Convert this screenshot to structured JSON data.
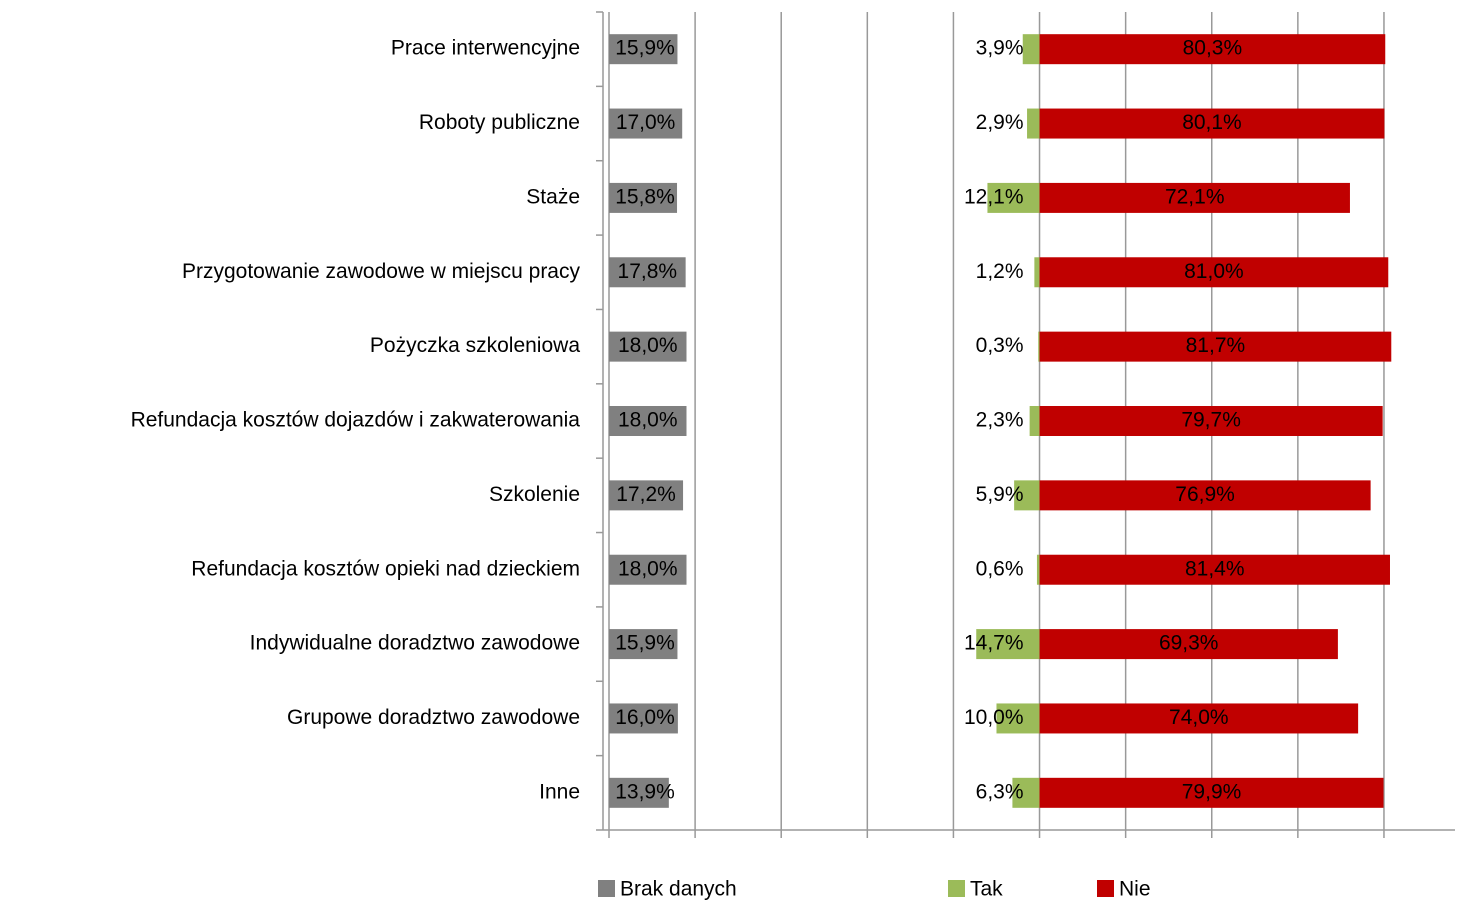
{
  "chart_data": {
    "type": "diverging_bar",
    "categories": [
      "Prace interwencyjne",
      "Roboty publiczne",
      "Staże",
      "Przygotowanie zawodowe  w miejscu pracy",
      "Pożyczka szkoleniowa",
      "Refundacja kosztów dojazdów  i zakwaterowania",
      "Szkolenie",
      "Refundacja kosztów opieki nad dzieckiem",
      "Indywidualne doradztwo  zawodowe",
      "Grupowe doradztwo  zawodowe",
      "Inne"
    ],
    "series": [
      {
        "name": "Brak danych",
        "color": "#808080",
        "values": [
          15.9,
          17.0,
          15.8,
          17.8,
          18.0,
          18.0,
          17.2,
          18.0,
          15.9,
          16.0,
          13.9
        ],
        "value_labels": [
          "15,9%",
          "17,0%",
          "15,8%",
          "17,8%",
          "18,0%",
          "18,0%",
          "17,2%",
          "18,0%",
          "15,9%",
          "16,0%",
          "13,9%"
        ]
      },
      {
        "name": "Tak",
        "color": "#9bbb59",
        "values": [
          3.9,
          2.9,
          12.1,
          1.2,
          0.3,
          2.3,
          5.9,
          0.6,
          14.7,
          10.0,
          6.3
        ],
        "value_labels": [
          "3,9%",
          "2,9%",
          "12,1%",
          "1,2%",
          "0,3%",
          "2,3%",
          "5,9%",
          "0,6%",
          "14,7%",
          "10,0%",
          "6,3%"
        ]
      },
      {
        "name": "Nie",
        "color": "#c00000",
        "values": [
          80.3,
          80.1,
          72.1,
          81.0,
          81.7,
          79.7,
          76.9,
          81.4,
          69.3,
          74.0,
          79.9
        ],
        "value_labels": [
          "80,3%",
          "80,1%",
          "72,1%",
          "81,0%",
          "81,7%",
          "79,7%",
          "76,9%",
          "81,4%",
          "69,3%",
          "74,0%",
          "79,9%"
        ]
      }
    ],
    "xlim": [
      -100,
      96.5
    ],
    "xticks": [
      -100,
      -80,
      -60,
      -40,
      -20,
      0,
      20,
      40,
      60,
      80
    ],
    "grid": true
  }
}
